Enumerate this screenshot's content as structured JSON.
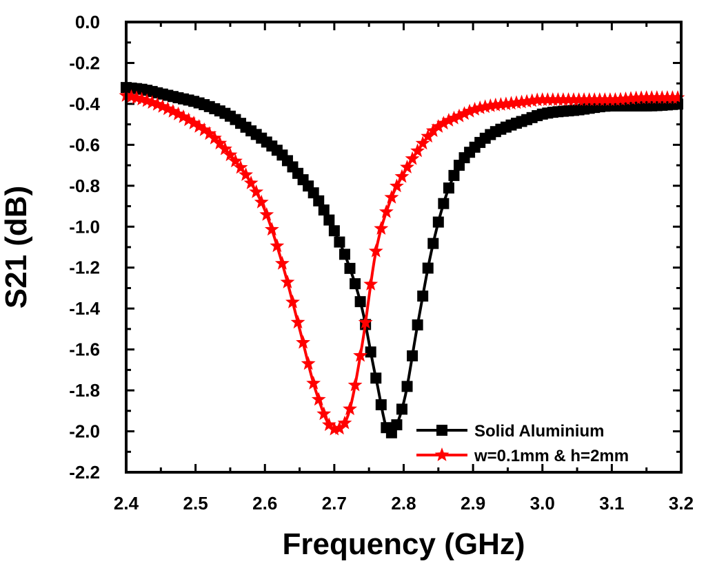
{
  "chart_data": {
    "type": "line",
    "title": "",
    "xlabel": "Frequency (GHz)",
    "ylabel": "S21 (dB)",
    "xlim": [
      2.4,
      3.2
    ],
    "ylim": [
      -2.2,
      0.0
    ],
    "xticks": [
      "2.4",
      "2.5",
      "2.6",
      "2.7",
      "2.8",
      "2.9",
      "3.0",
      "3.1",
      "3.2"
    ],
    "yticks": [
      "0.0",
      "-0.2",
      "-0.4",
      "-0.6",
      "-0.8",
      "-1.0",
      "-1.2",
      "-1.4",
      "-1.6",
      "-1.8",
      "-2.0",
      "-2.2"
    ],
    "grid": false,
    "legend_position": "bottom-right",
    "x": [
      2.4,
      2.425,
      2.45,
      2.475,
      2.5,
      2.525,
      2.55,
      2.575,
      2.6,
      2.625,
      2.65,
      2.675,
      2.7,
      2.72,
      2.74,
      2.76,
      2.78,
      2.8,
      2.82,
      2.84,
      2.86,
      2.88,
      2.9,
      2.925,
      2.95,
      2.975,
      3.0,
      3.05,
      3.1,
      3.15,
      3.2
    ],
    "series": [
      {
        "name": "Solid Aluminium",
        "color": "#000000",
        "marker": "square",
        "values": [
          -0.32,
          -0.33,
          -0.35,
          -0.37,
          -0.39,
          -0.42,
          -0.46,
          -0.52,
          -0.58,
          -0.65,
          -0.75,
          -0.86,
          -1.02,
          -1.18,
          -1.4,
          -1.74,
          -2.01,
          -1.86,
          -1.48,
          -1.12,
          -0.86,
          -0.7,
          -0.62,
          -0.55,
          -0.51,
          -0.48,
          -0.45,
          -0.43,
          -0.41,
          -0.41,
          -0.4
        ]
      },
      {
        "name": "w=0.1mm & h=2mm",
        "color": "#ff0000",
        "marker": "star",
        "values": [
          -0.36,
          -0.38,
          -0.41,
          -0.45,
          -0.5,
          -0.56,
          -0.65,
          -0.76,
          -0.92,
          -1.18,
          -1.5,
          -1.82,
          -1.99,
          -1.92,
          -1.58,
          -1.12,
          -0.88,
          -0.74,
          -0.63,
          -0.54,
          -0.49,
          -0.46,
          -0.43,
          -0.41,
          -0.4,
          -0.39,
          -0.38,
          -0.38,
          -0.38,
          -0.37,
          -0.37
        ]
      }
    ]
  }
}
